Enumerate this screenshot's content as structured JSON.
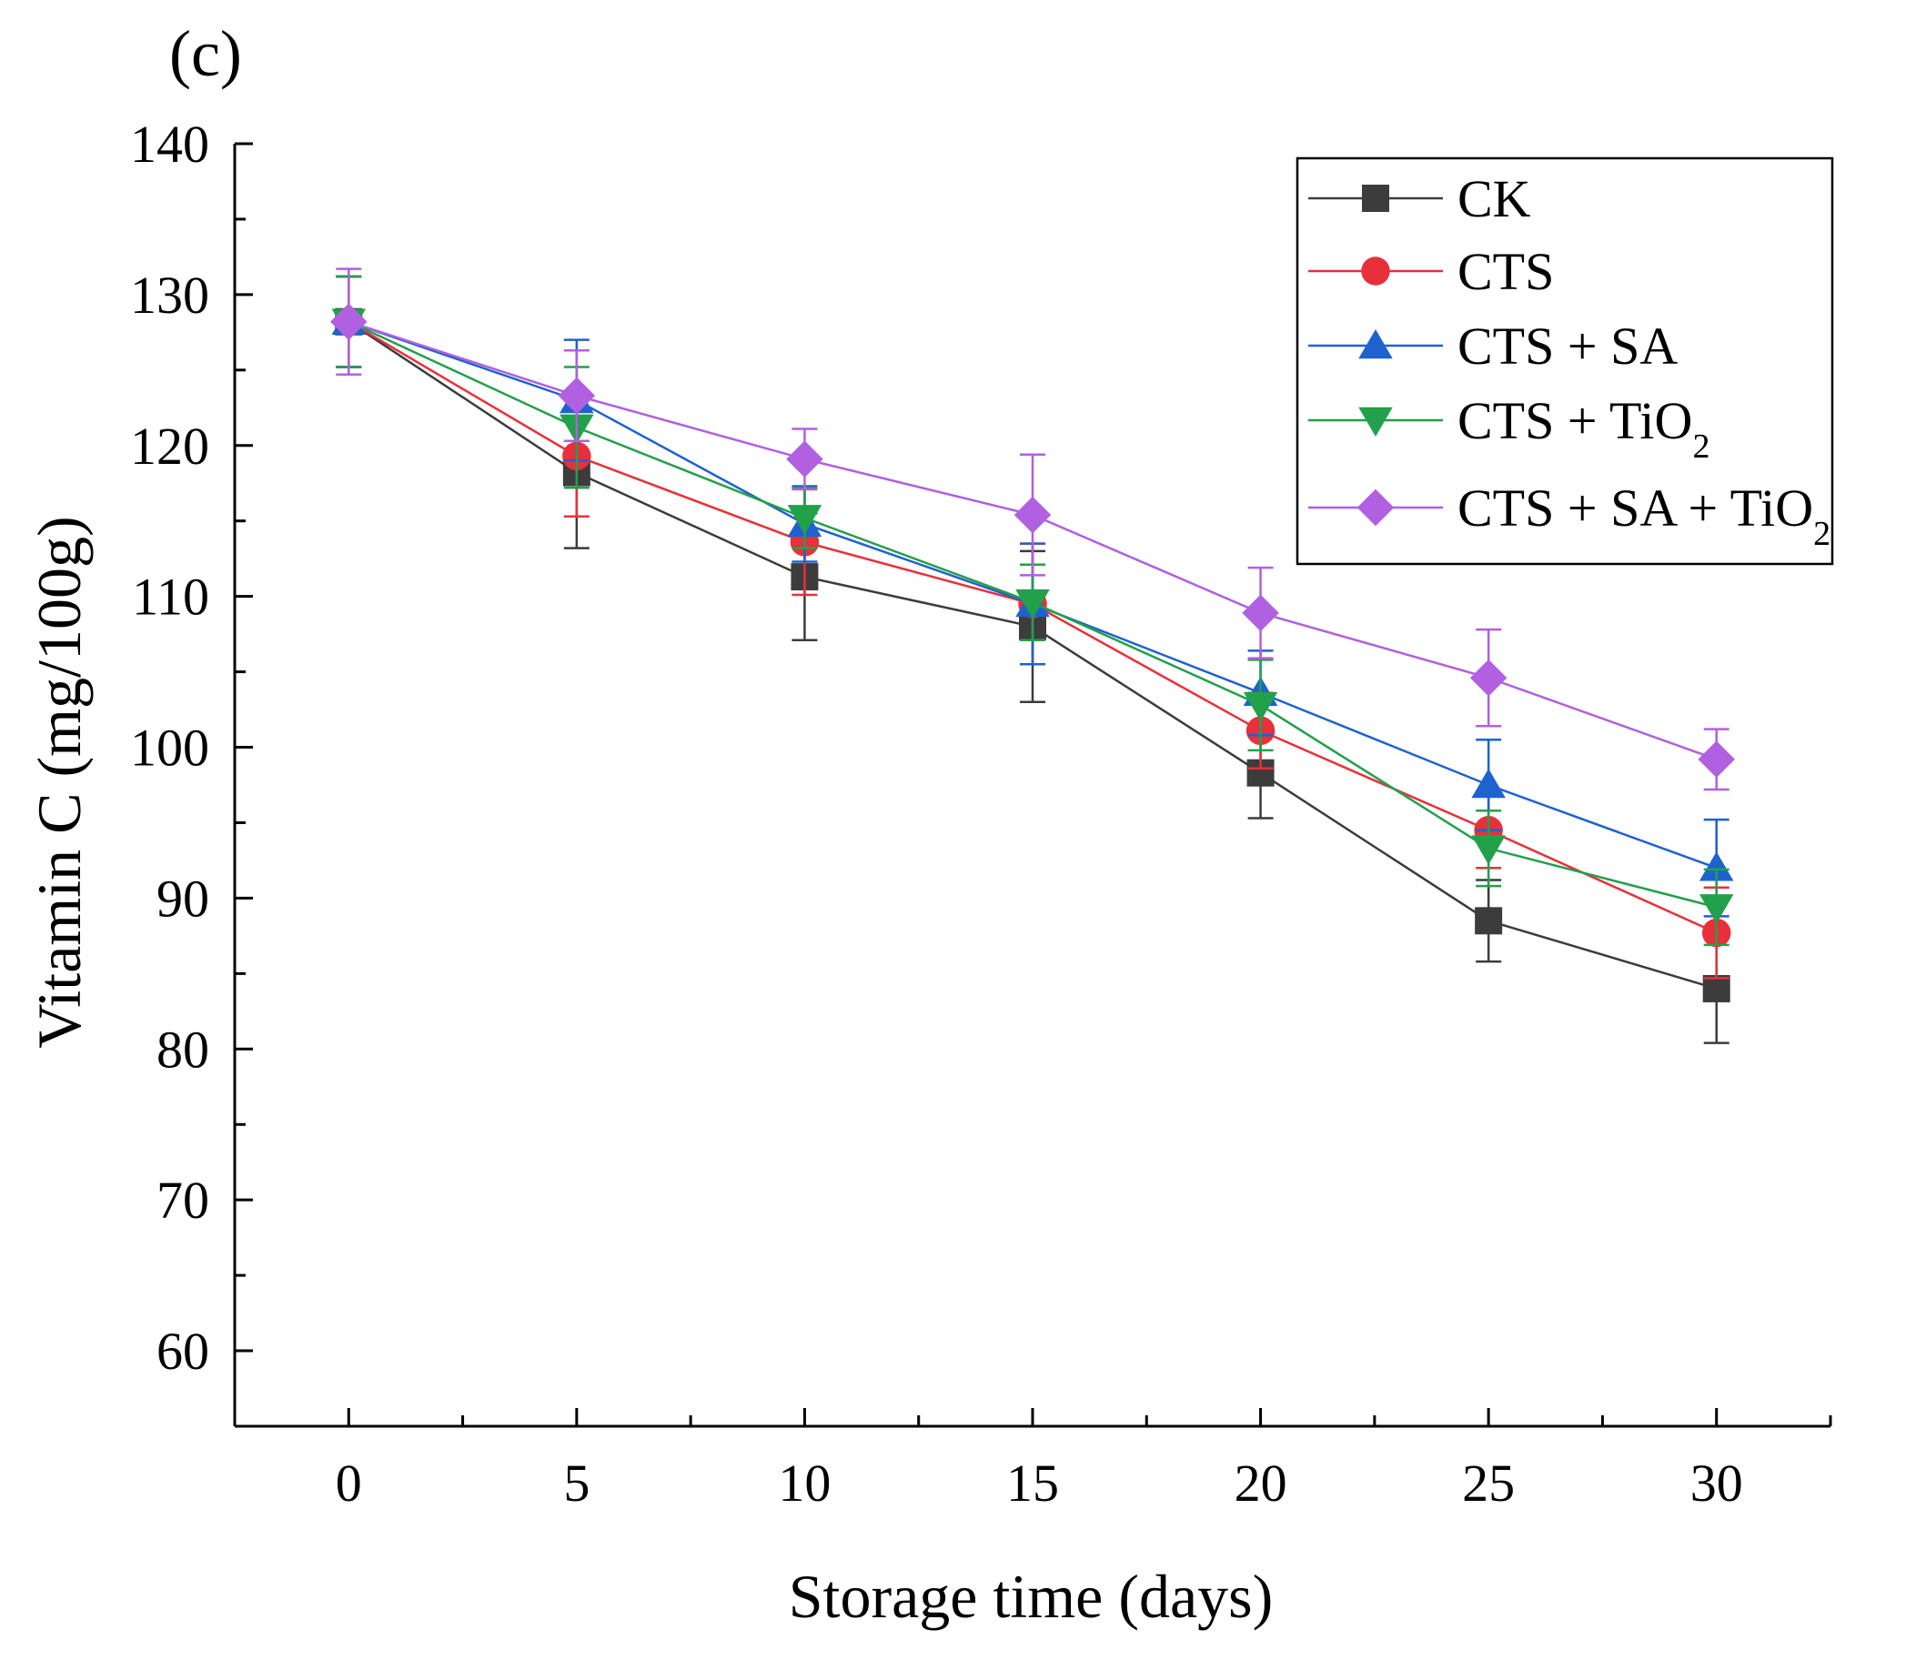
{
  "panel_label": "(c)",
  "chart_data": {
    "type": "line",
    "title": "",
    "xlabel": "Storage time (days)",
    "ylabel": "Vitamin C (mg/100g)",
    "x": [
      0,
      5,
      10,
      15,
      20,
      25,
      30
    ],
    "x_ticks": [
      "0",
      "5",
      "10",
      "15",
      "20",
      "25",
      "30"
    ],
    "y_ticks": [
      "60",
      "70",
      "80",
      "90",
      "100",
      "110",
      "120",
      "130",
      "140"
    ],
    "xlim": [
      -2.5,
      32.5
    ],
    "ylim": [
      55,
      140
    ],
    "legend_position": "top-right",
    "series": [
      {
        "name": "CK",
        "label_main": "CK",
        "label_sub": "",
        "label_tail": "",
        "color": "#3c3c3c",
        "line_color": "#3c3c3c",
        "marker": "square",
        "values": [
          128.2,
          118.2,
          111.3,
          108.0,
          98.3,
          88.5,
          84.0
        ],
        "errors": [
          3.0,
          5.0,
          4.2,
          5.0,
          3.0,
          2.7,
          3.6
        ]
      },
      {
        "name": "CTS",
        "label_main": "CTS",
        "label_sub": "",
        "label_tail": "",
        "color": "#e8303a",
        "line_color": "#e8303a",
        "marker": "circle",
        "values": [
          128.2,
          119.3,
          113.6,
          109.5,
          101.1,
          94.5,
          87.7
        ],
        "errors": [
          3.0,
          4.0,
          3.5,
          4.0,
          2.5,
          2.5,
          3.0
        ]
      },
      {
        "name": "CTS + SA",
        "label_main": "CTS + SA",
        "label_sub": "",
        "label_tail": "",
        "color": "#1e62d0",
        "line_color": "#1e62d0",
        "marker": "triangle-up",
        "values": [
          128.2,
          123.0,
          114.8,
          109.5,
          103.6,
          97.5,
          92.0
        ],
        "errors": [
          3.0,
          4.0,
          2.5,
          4.0,
          2.8,
          3.0,
          3.2
        ]
      },
      {
        "name": "CTS + TiO2",
        "label_main": "CTS + TiO",
        "label_sub": "2",
        "label_tail": "",
        "color": "#22a04a",
        "line_color": "#22a04a",
        "marker": "triangle-down",
        "values": [
          128.2,
          121.2,
          115.2,
          109.6,
          102.8,
          93.3,
          89.4
        ],
        "errors": [
          3.0,
          4.0,
          2.0,
          2.5,
          3.0,
          2.5,
          2.5
        ]
      },
      {
        "name": "CTS + SA + TiO2",
        "label_main": "CTS + SA + TiO",
        "label_sub": "2",
        "label_tail": "",
        "color": "#b060e0",
        "line_color": "#b060e0",
        "marker": "diamond",
        "values": [
          128.2,
          123.3,
          119.1,
          115.4,
          108.9,
          104.6,
          99.2
        ],
        "errors": [
          3.5,
          3.0,
          2.0,
          4.0,
          3.0,
          3.2,
          2.0
        ]
      }
    ]
  }
}
